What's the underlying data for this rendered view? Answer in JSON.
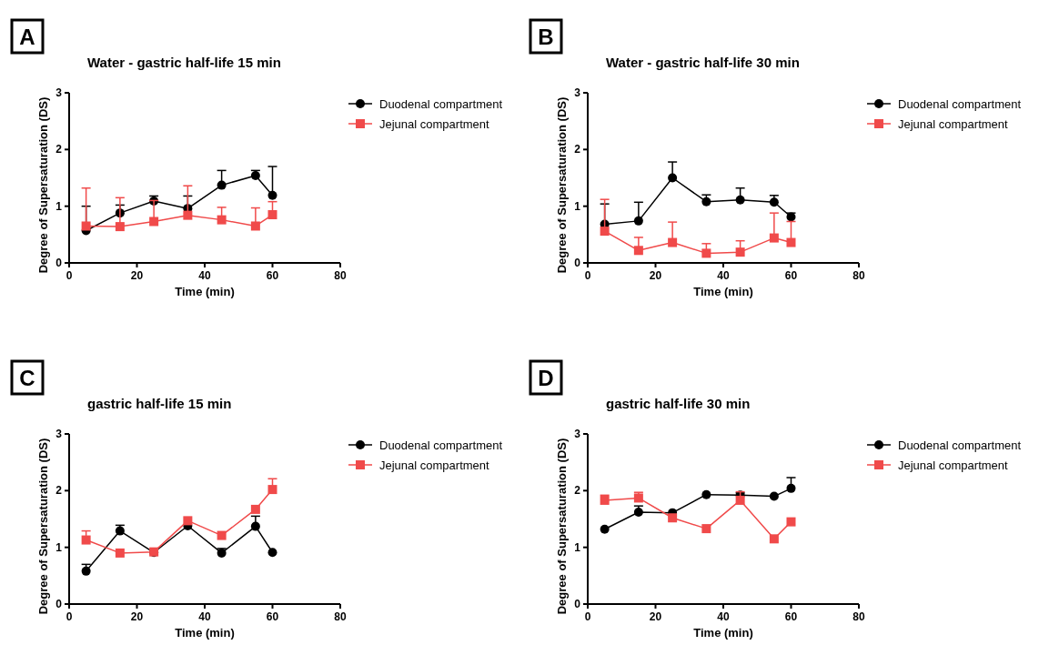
{
  "chart_data": [
    {
      "type": "line",
      "title": "Water - gastric half-life 15 min",
      "xlabel": "Time (min)",
      "ylabel": "Degree of Supersaturation (DS)",
      "annotations": [
        "A"
      ],
      "x": [
        5,
        15,
        25,
        35,
        45,
        55,
        60
      ],
      "xlim": [
        0,
        80
      ],
      "xticks": [
        0,
        20,
        40,
        60,
        80
      ],
      "ylim": [
        0,
        3
      ],
      "yticks": [
        0,
        1,
        2,
        3
      ],
      "legend": "right",
      "grid": false,
      "series": [
        {
          "name": "Duodenal compartment",
          "color": "#000000",
          "marker": "circle",
          "values": [
            0.57,
            0.88,
            1.09,
            0.96,
            1.37,
            1.54,
            1.19
          ],
          "errors": [
            [
              0.57,
              1.0
            ],
            [
              0.88,
              1.02
            ],
            [
              1.09,
              1.18
            ],
            [
              0.96,
              1.18
            ],
            [
              1.37,
              1.63
            ],
            [
              1.54,
              1.63
            ],
            [
              1.19,
              1.7
            ]
          ]
        },
        {
          "name": "Jejunal compartment",
          "color": "#f04a4a",
          "marker": "square",
          "values": [
            0.65,
            0.64,
            0.73,
            0.84,
            0.76,
            0.65,
            0.85
          ],
          "errors": [
            [
              0.65,
              1.32
            ],
            [
              0.64,
              1.15
            ],
            [
              0.73,
              1.1
            ],
            [
              0.84,
              1.36
            ],
            [
              0.76,
              0.98
            ],
            [
              0.65,
              0.97
            ],
            [
              0.85,
              1.08
            ]
          ]
        }
      ]
    },
    {
      "type": "line",
      "title": "Water - gastric half-life 30 min",
      "xlabel": "Time (min)",
      "ylabel": "Degree of Supersaturation (DS)",
      "annotations": [
        "B"
      ],
      "x": [
        5,
        15,
        25,
        35,
        45,
        55,
        60
      ],
      "xlim": [
        0,
        80
      ],
      "xticks": [
        0,
        20,
        40,
        60,
        80
      ],
      "ylim": [
        0,
        3
      ],
      "yticks": [
        0,
        1,
        2,
        3
      ],
      "legend": "right",
      "grid": false,
      "series": [
        {
          "name": "Duodenal compartment",
          "color": "#000000",
          "marker": "circle",
          "values": [
            0.68,
            0.74,
            1.5,
            1.08,
            1.11,
            1.07,
            0.81
          ],
          "errors": [
            [
              0.68,
              1.04
            ],
            [
              0.74,
              1.07
            ],
            [
              1.5,
              1.78
            ],
            [
              1.08,
              1.2
            ],
            [
              1.11,
              1.32
            ],
            [
              1.07,
              1.19
            ],
            [
              0.81,
              0.88
            ]
          ]
        },
        {
          "name": "Jejunal compartment",
          "color": "#f04a4a",
          "marker": "square",
          "values": [
            0.56,
            0.22,
            0.36,
            0.17,
            0.19,
            0.44,
            0.36
          ],
          "errors": [
            [
              0.56,
              1.12
            ],
            [
              0.22,
              0.45
            ],
            [
              0.36,
              0.72
            ],
            [
              0.17,
              0.34
            ],
            [
              0.19,
              0.39
            ],
            [
              0.44,
              0.88
            ],
            [
              0.36,
              0.73
            ]
          ]
        }
      ]
    },
    {
      "type": "line",
      "title": "gastric half-life 15 min",
      "xlabel": "Time (min)",
      "ylabel": "Degree of Supersaturation (DS)",
      "annotations": [
        "C"
      ],
      "x": [
        5,
        15,
        25,
        35,
        45,
        55,
        60
      ],
      "xlim": [
        0,
        80
      ],
      "xticks": [
        0,
        20,
        40,
        60,
        80
      ],
      "ylim": [
        0,
        3
      ],
      "yticks": [
        0,
        1,
        2,
        3
      ],
      "legend": "right",
      "grid": false,
      "series": [
        {
          "name": "Duodenal compartment",
          "color": "#000000",
          "marker": "circle",
          "values": [
            0.58,
            1.29,
            0.91,
            1.38,
            0.9,
            1.37,
            0.91
          ],
          "errors": [
            [
              0.58,
              0.7
            ],
            [
              1.29,
              1.39
            ],
            null,
            null,
            [
              0.9,
              0.98
            ],
            [
              1.37,
              1.55
            ],
            null
          ]
        },
        {
          "name": "Jejunal compartment",
          "color": "#f04a4a",
          "marker": "square",
          "values": [
            1.13,
            0.9,
            0.92,
            1.47,
            1.21,
            1.67,
            2.02
          ],
          "errors": [
            [
              1.13,
              1.29
            ],
            null,
            null,
            null,
            null,
            null,
            [
              2.02,
              2.21
            ]
          ]
        }
      ]
    },
    {
      "type": "line",
      "title": "gastric half-life 30 min",
      "xlabel": "Time (min)",
      "ylabel": "Degree of Supersaturation (DS)",
      "annotations": [
        "D"
      ],
      "x": [
        5,
        15,
        25,
        35,
        45,
        55,
        60
      ],
      "xlim": [
        0,
        80
      ],
      "xticks": [
        0,
        20,
        40,
        60,
        80
      ],
      "ylim": [
        0,
        3
      ],
      "yticks": [
        0,
        1,
        2,
        3
      ],
      "legend": "right",
      "grid": false,
      "series": [
        {
          "name": "Duodenal compartment",
          "color": "#000000",
          "marker": "circle",
          "values": [
            1.32,
            1.62,
            1.61,
            1.93,
            1.92,
            1.9,
            2.04
          ],
          "errors": [
            null,
            [
              1.62,
              1.73
            ],
            null,
            null,
            [
              1.92,
              1.96
            ],
            null,
            [
              2.04,
              2.23
            ]
          ]
        },
        {
          "name": "Jejunal compartment",
          "color": "#f04a4a",
          "marker": "square",
          "values": [
            1.83,
            1.87,
            1.52,
            1.33,
            1.83,
            1.15,
            1.45
          ],
          "errors": [
            [
              1.83,
              1.92
            ],
            [
              1.87,
              1.97
            ],
            null,
            null,
            [
              1.83,
              1.98
            ],
            null,
            null
          ]
        }
      ]
    }
  ]
}
